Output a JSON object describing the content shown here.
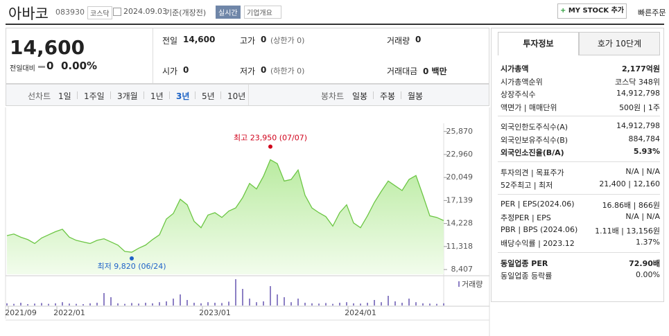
{
  "header": {
    "name": "아바코",
    "code": "083930",
    "market": "코스닥",
    "date": "2024.09.03",
    "basis": "기준(개장전)",
    "realtime": "실시간",
    "overview": "기업개요",
    "my_stock": "MY STOCK 추가",
    "quick_order": "빠른주문"
  },
  "quote": {
    "price": "14,600",
    "change_label": "전일대비",
    "change": "0",
    "rate": "0.00%"
  },
  "stats": [
    {
      "label": "전일",
      "value": "14,600"
    },
    {
      "label": "고가",
      "value": "0",
      "sub": "(상한가 0)"
    },
    {
      "label": "거래량",
      "value": "0"
    },
    {
      "label": "시가",
      "value": "0"
    },
    {
      "label": "저가",
      "value": "0",
      "sub": "(하한가 0)"
    },
    {
      "label": "거래대금",
      "value": "0 백만"
    }
  ],
  "chart_tabs": {
    "line_label": "선차트",
    "periods": [
      {
        "label": "1일"
      },
      {
        "label": "1주일"
      },
      {
        "label": "3개월"
      },
      {
        "label": "1년"
      },
      {
        "label": "3년",
        "active": true
      },
      {
        "label": "5년"
      },
      {
        "label": "10년"
      }
    ],
    "candle_label": "봉차트",
    "candles": [
      "일봉",
      "주봉",
      "월봉"
    ]
  },
  "chart_data": {
    "type": "area",
    "categories": [
      null,
      null,
      "2021/09",
      null,
      null,
      null,
      null,
      null,
      null,
      "2022/01",
      null,
      null,
      null,
      null,
      null,
      null,
      null,
      null,
      null,
      null,
      null,
      null,
      null,
      null,
      null,
      null,
      null,
      null,
      null,
      null,
      "2023/01",
      null,
      null,
      null,
      null,
      null,
      null,
      null,
      null,
      null,
      null,
      null,
      null,
      null,
      null,
      null,
      null,
      null,
      null,
      null,
      null,
      "2024/01",
      null,
      null,
      null,
      null,
      null,
      null,
      null,
      null,
      null,
      null,
      null,
      null
    ],
    "values": [
      12700,
      12900,
      12500,
      12200,
      11700,
      12400,
      12800,
      13200,
      13500,
      12500,
      12100,
      11900,
      11700,
      12100,
      12300,
      11900,
      11500,
      10700,
      10600,
      11100,
      11500,
      12200,
      12800,
      14800,
      15500,
      17300,
      16600,
      14500,
      13700,
      15300,
      15600,
      15000,
      15800,
      16200,
      17500,
      19300,
      18600,
      20200,
      22300,
      21800,
      19600,
      19800,
      21000,
      17800,
      16200,
      15600,
      15100,
      13900,
      15600,
      16600,
      14300,
      13700,
      15200,
      16900,
      18300,
      19600,
      19000,
      18400,
      19800,
      20300,
      17800,
      15200,
      15000,
      14600
    ],
    "color": "#6cc644",
    "ylim": [
      7800,
      26900
    ],
    "yticks": [
      {
        "value": 8407,
        "label": "8,407"
      },
      {
        "value": 11318,
        "label": "11,318"
      },
      {
        "value": 14228,
        "label": "14,228"
      },
      {
        "value": 17139,
        "label": "17,139"
      },
      {
        "value": 20049,
        "label": "20,049"
      },
      {
        "value": 22960,
        "label": "22,960"
      },
      {
        "value": 25870,
        "label": "25,870"
      }
    ],
    "annotations": [
      {
        "label": "최고",
        "value": 23950,
        "value_label": "23,950",
        "date": "(07/07)",
        "color": "#d0021b"
      },
      {
        "label": "최저",
        "value": 9820,
        "value_label": "9,820",
        "date": "(06/24)",
        "color": "#1f62c8"
      }
    ],
    "volume": {
      "name": "거래량",
      "color": "#8c7fc4",
      "values": [
        8,
        6,
        10,
        5,
        7,
        9,
        6,
        8,
        12,
        7,
        6,
        5,
        8,
        10,
        45,
        30,
        8,
        6,
        9,
        7,
        10,
        8,
        12,
        15,
        25,
        40,
        20,
        10,
        8,
        12,
        10,
        9,
        14,
        95,
        60,
        25,
        12,
        15,
        70,
        40,
        30,
        12,
        25,
        10,
        8,
        7,
        9,
        6,
        10,
        12,
        8,
        7,
        10,
        20,
        12,
        35,
        15,
        10,
        25,
        12,
        8,
        7,
        6,
        8
      ]
    }
  },
  "info": {
    "tabs": [
      "투자정보",
      "호가 10단계"
    ],
    "sections": [
      [
        {
          "label": "시가총액",
          "value": "2,177억원",
          "bold": true
        },
        {
          "label": "시가총액순위",
          "value": "코스닥 348위"
        },
        {
          "label": "상장주식수",
          "value": "14,912,798"
        },
        {
          "label": "액면가 | 매매단위",
          "value": "500원 | 1주"
        }
      ],
      [
        {
          "label": "외국인한도주식수(A)",
          "value": "14,912,798"
        },
        {
          "label": "외국인보유주식수(B)",
          "value": "884,784"
        },
        {
          "label": "외국인소진율(B/A)",
          "value": "5.93%",
          "bold": true
        }
      ],
      [
        {
          "label": "투자의견 | 목표주가",
          "value": "N/A | N/A"
        },
        {
          "label": "52주최고 | 최저",
          "value": "21,400 | 12,160"
        }
      ],
      [
        {
          "label": "PER | EPS(2024.06)",
          "value": "16.86배 | 866원"
        },
        {
          "label": "추정PER | EPS",
          "value": "N/A | N/A"
        },
        {
          "label": "PBR | BPS (2024.06)",
          "value": "1.11배 | 13,156원"
        },
        {
          "label": "배당수익률 | 2023.12",
          "value": "1.37%"
        }
      ],
      [
        {
          "label": "동일업종 PER",
          "value": "72.90배",
          "bold": true
        },
        {
          "label": "동일업종 등락률",
          "value": "0.00%"
        }
      ]
    ]
  }
}
